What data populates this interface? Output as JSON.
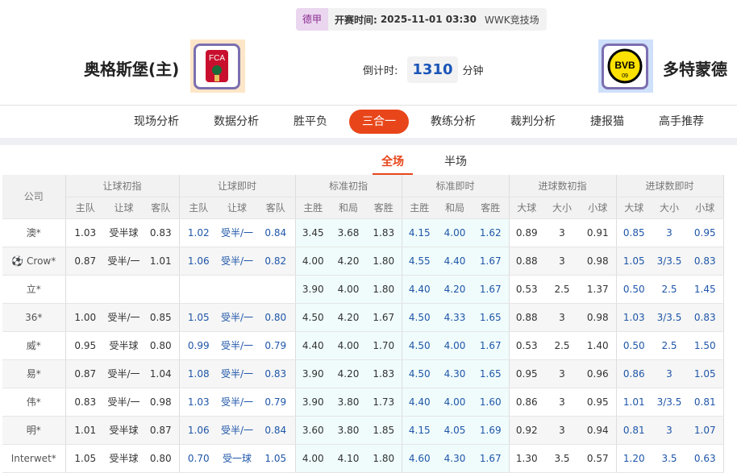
{
  "match": {
    "league": "德甲",
    "kickoff_label": "开赛时间:",
    "kickoff": "2025-11-01 03:30",
    "venue": "WWK竞技场",
    "home": "奥格斯堡(主)",
    "away": "多特蒙德",
    "countdown_label": "倒计时:",
    "countdown": "1310",
    "countdown_unit": "分钟",
    "home_logo_text": "FCA",
    "away_logo_text": "BVB 09"
  },
  "nav": [
    {
      "label": "现场分析"
    },
    {
      "label": "数据分析"
    },
    {
      "label": "胜平负"
    },
    {
      "label": "三合一",
      "active": true
    },
    {
      "label": "教练分析"
    },
    {
      "label": "裁判分析"
    },
    {
      "label": "捷报猫"
    },
    {
      "label": "高手推荐"
    }
  ],
  "subtabs": [
    {
      "label": "全场",
      "active": true
    },
    {
      "label": "半场"
    }
  ],
  "table": {
    "company_header": "公司",
    "groups": [
      "让球初指",
      "让球即时",
      "标准初指",
      "标准即时",
      "进球数初指",
      "进球数即时"
    ],
    "subheaders": [
      [
        "主队",
        "让球",
        "客队"
      ],
      [
        "主队",
        "让球",
        "客队"
      ],
      [
        "主胜",
        "和局",
        "客胜"
      ],
      [
        "主胜",
        "和局",
        "客胜"
      ],
      [
        "大球",
        "大小",
        "小球"
      ],
      [
        "大球",
        "大小",
        "小球"
      ]
    ],
    "rows": [
      {
        "company": "澳*",
        "v": [
          "1.03",
          "受半球",
          "0.83",
          "1.02",
          "受半/一",
          "0.84",
          "3.45",
          "3.68",
          "1.83",
          "4.15",
          "4.00",
          "1.62",
          "0.89",
          "3",
          "0.91",
          "0.85",
          "3",
          "0.95"
        ]
      },
      {
        "company": "Crow*",
        "icon": "soccer-ball-icon",
        "v": [
          "0.87",
          "受半/一",
          "1.01",
          "1.06",
          "受半/一",
          "0.82",
          "4.00",
          "4.20",
          "1.80",
          "4.55",
          "4.40",
          "1.67",
          "0.88",
          "3",
          "0.98",
          "1.05",
          "3/3.5",
          "0.83"
        ]
      },
      {
        "company": "立*",
        "v": [
          "",
          "",
          "",
          "",
          "",
          "",
          "3.90",
          "4.00",
          "1.80",
          "4.40",
          "4.20",
          "1.67",
          "0.53",
          "2.5",
          "1.37",
          "0.50",
          "2.5",
          "1.45"
        ]
      },
      {
        "company": "36*",
        "v": [
          "1.00",
          "受半/一",
          "0.85",
          "1.05",
          "受半/一",
          "0.80",
          "4.50",
          "4.20",
          "1.67",
          "4.50",
          "4.33",
          "1.65",
          "0.88",
          "3",
          "0.98",
          "1.03",
          "3/3.5",
          "0.83"
        ]
      },
      {
        "company": "威*",
        "v": [
          "0.95",
          "受半球",
          "0.80",
          "0.99",
          "受半/一",
          "0.79",
          "4.40",
          "4.00",
          "1.70",
          "4.50",
          "4.00",
          "1.67",
          "0.53",
          "2.5",
          "1.40",
          "0.50",
          "2.5",
          "1.50"
        ]
      },
      {
        "company": "易*",
        "v": [
          "0.87",
          "受半/一",
          "1.04",
          "1.08",
          "受半/一",
          "0.83",
          "3.90",
          "4.20",
          "1.83",
          "4.50",
          "4.30",
          "1.65",
          "0.95",
          "3",
          "0.96",
          "0.86",
          "3",
          "1.05"
        ]
      },
      {
        "company": "伟*",
        "v": [
          "0.83",
          "受半/一",
          "0.98",
          "1.03",
          "受半/一",
          "0.79",
          "3.90",
          "3.80",
          "1.73",
          "4.40",
          "4.00",
          "1.60",
          "0.86",
          "3",
          "0.95",
          "1.01",
          "3/3.5",
          "0.81"
        ]
      },
      {
        "company": "明*",
        "v": [
          "1.01",
          "受半球",
          "0.87",
          "1.06",
          "受半/一",
          "0.84",
          "3.60",
          "3.80",
          "1.85",
          "4.15",
          "4.05",
          "1.69",
          "0.92",
          "3",
          "0.94",
          "0.81",
          "3",
          "1.07"
        ]
      },
      {
        "company": "Interwet*",
        "v": [
          "1.05",
          "受半球",
          "0.80",
          "0.70",
          "受一球",
          "1.05",
          "4.00",
          "4.10",
          "1.80",
          "4.60",
          "4.30",
          "1.67",
          "1.30",
          "3.5",
          "0.57",
          "1.20",
          "3.5",
          "0.63"
        ]
      }
    ]
  },
  "colors": {
    "accent": "#e8461a",
    "live_blue": "#1f56a8",
    "std_bg": "#f0fcfc"
  }
}
